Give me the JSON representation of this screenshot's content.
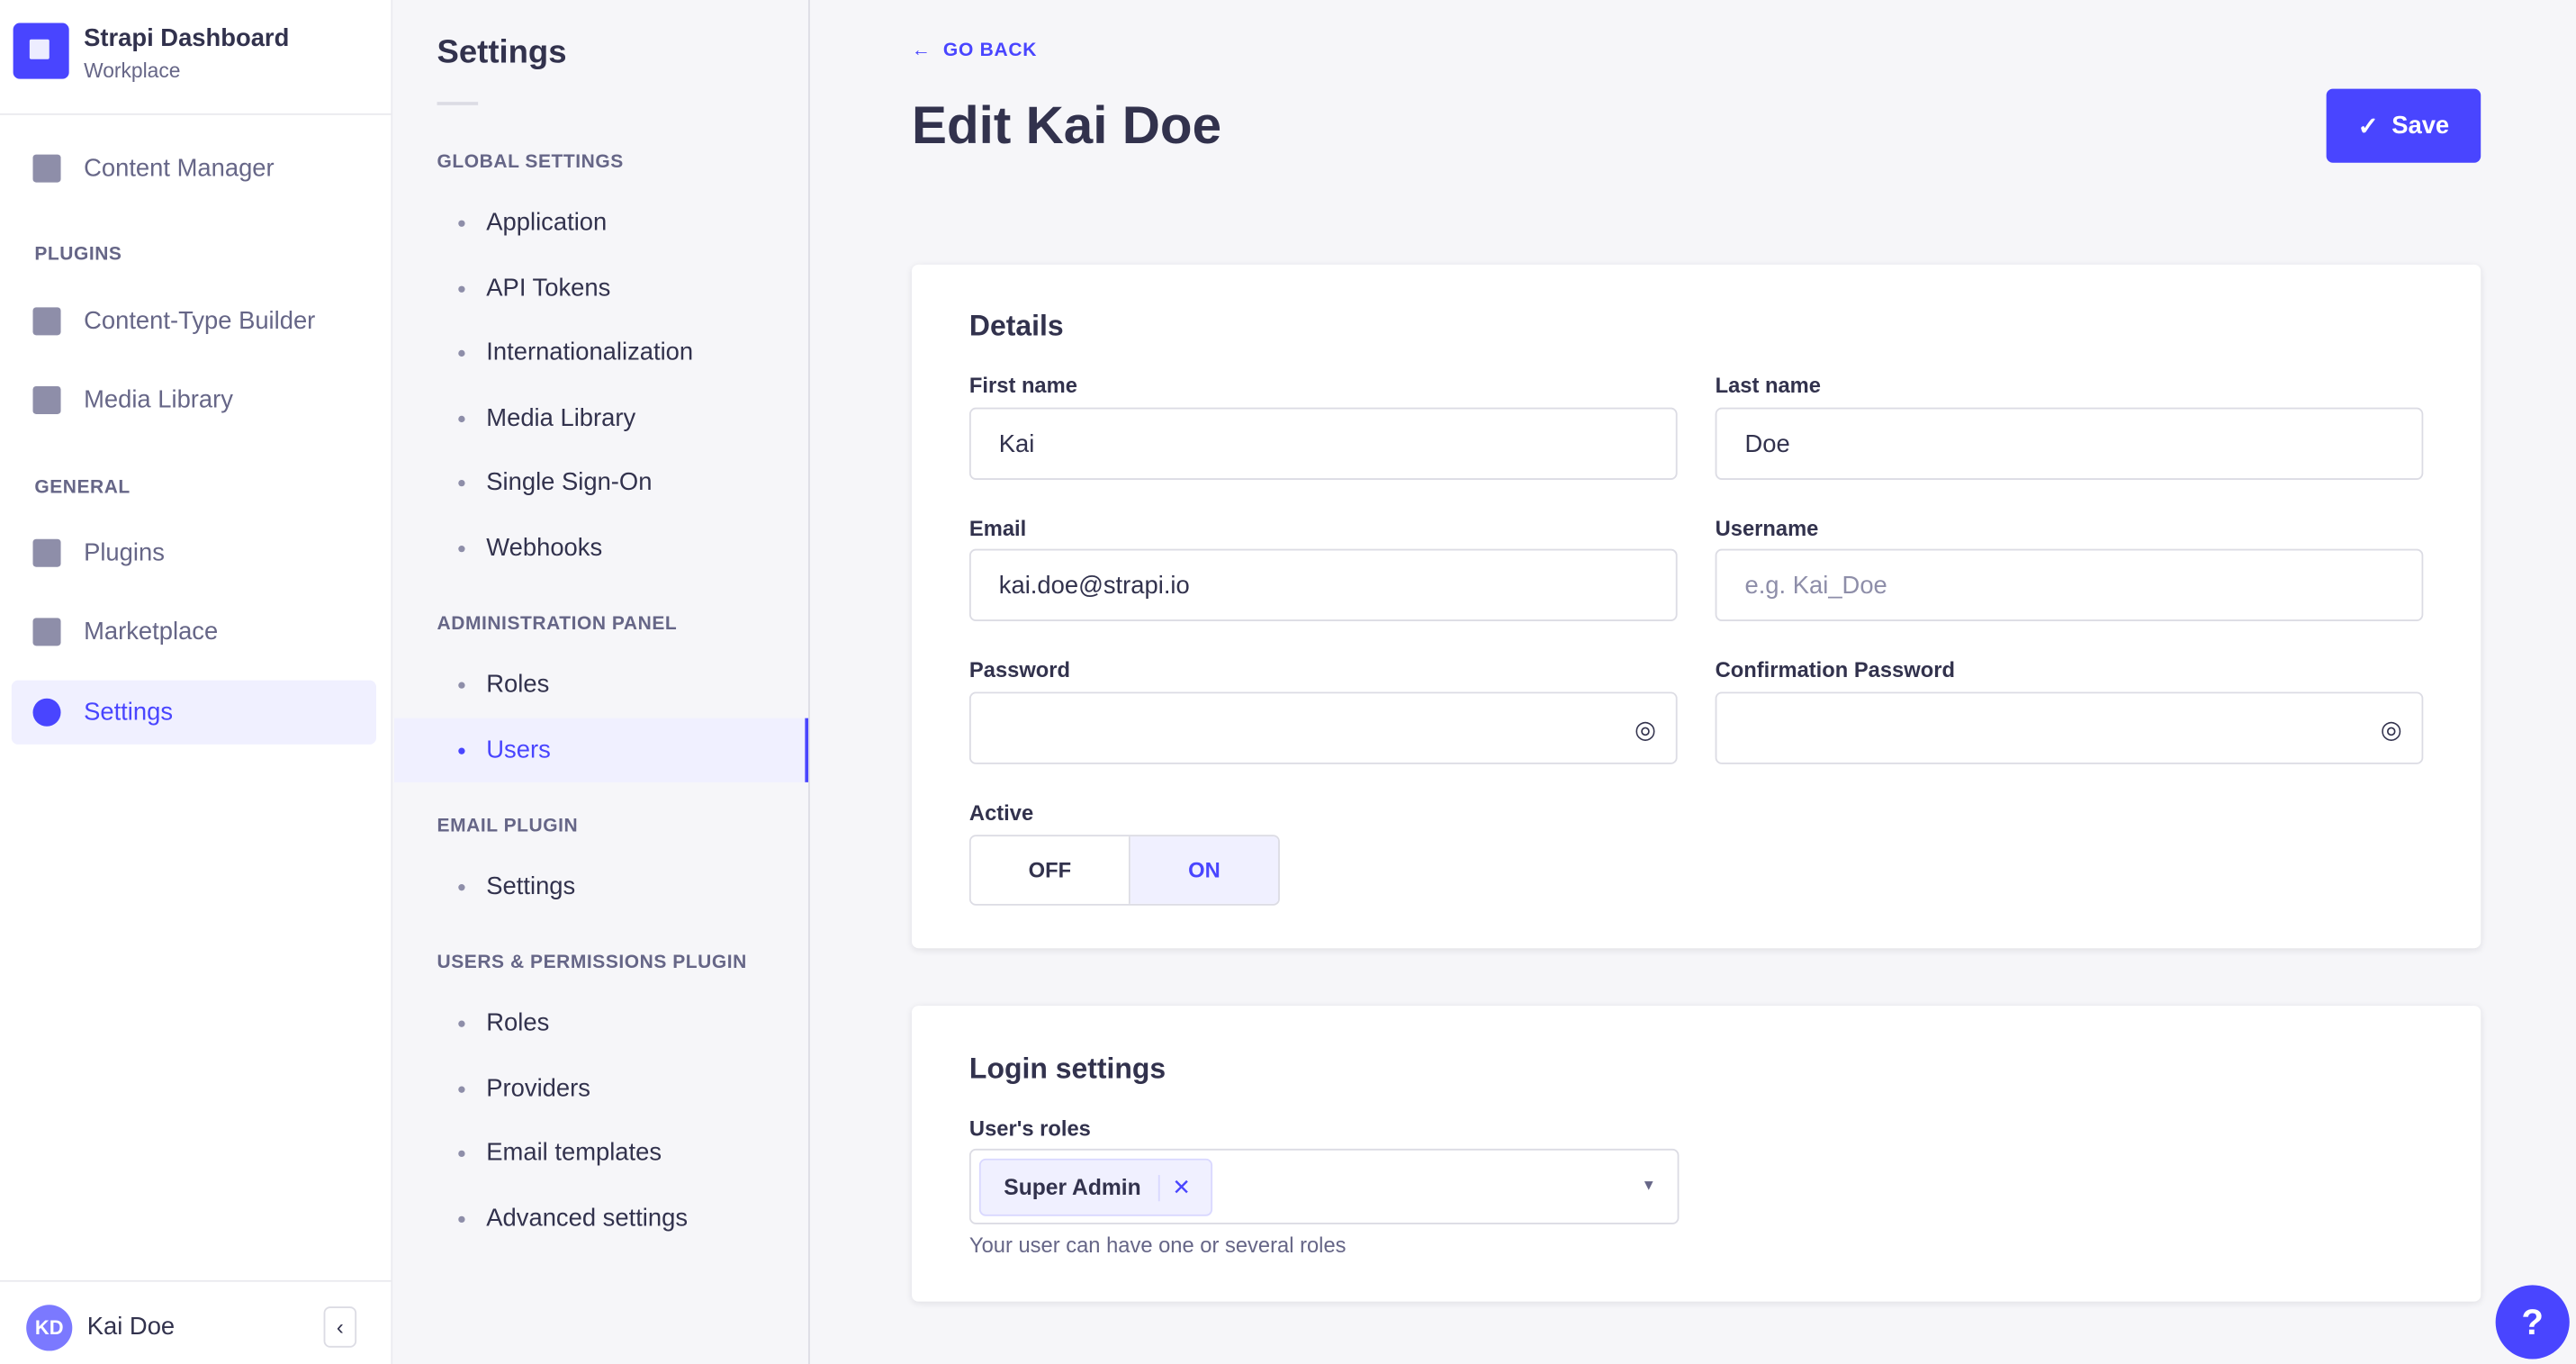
{
  "brand": {
    "title": "Strapi Dashboard",
    "subtitle": "Workplace"
  },
  "sidebar": {
    "content_manager": "Content Manager",
    "plugins_label": "PLUGINS",
    "plugins": [
      "Content-Type Builder",
      "Media Library"
    ],
    "general_label": "GENERAL",
    "general": [
      "Plugins",
      "Marketplace",
      "Settings"
    ],
    "active": "Settings",
    "user": {
      "initials": "KD",
      "name": "Kai Doe"
    }
  },
  "settings_nav": {
    "title": "Settings",
    "sections": [
      {
        "heading": "GLOBAL SETTINGS",
        "items": [
          "Application",
          "API Tokens",
          "Internationalization",
          "Media Library",
          "Single Sign-On",
          "Webhooks"
        ]
      },
      {
        "heading": "ADMINISTRATION PANEL",
        "items": [
          "Roles",
          "Users"
        ]
      },
      {
        "heading": "EMAIL PLUGIN",
        "items": [
          "Settings"
        ]
      },
      {
        "heading": "USERS & PERMISSIONS PLUGIN",
        "items": [
          "Roles",
          "Providers",
          "Email templates",
          "Advanced settings"
        ]
      }
    ],
    "active": "Users"
  },
  "header": {
    "go_back": "GO BACK",
    "title": "Edit Kai Doe",
    "save": "Save"
  },
  "details": {
    "heading": "Details",
    "first_name": {
      "label": "First name",
      "value": "Kai"
    },
    "last_name": {
      "label": "Last name",
      "value": "Doe"
    },
    "email": {
      "label": "Email",
      "value": "kai.doe@strapi.io"
    },
    "username": {
      "label": "Username",
      "value": "",
      "placeholder": "e.g. Kai_Doe"
    },
    "password": {
      "label": "Password",
      "value": ""
    },
    "confirm_password": {
      "label": "Confirmation Password",
      "value": ""
    },
    "active": {
      "label": "Active",
      "off": "OFF",
      "on": "ON",
      "selected": "ON"
    }
  },
  "login": {
    "heading": "Login settings",
    "roles_label": "User's roles",
    "roles": [
      "Super Admin"
    ],
    "hint": "Your user can have one or several roles"
  },
  "help": "?",
  "colors": {
    "accent": "#4945ff",
    "accent_light": "#f0f0ff",
    "text": "#32324d",
    "muted": "#666687",
    "bg": "#f6f6f9"
  }
}
